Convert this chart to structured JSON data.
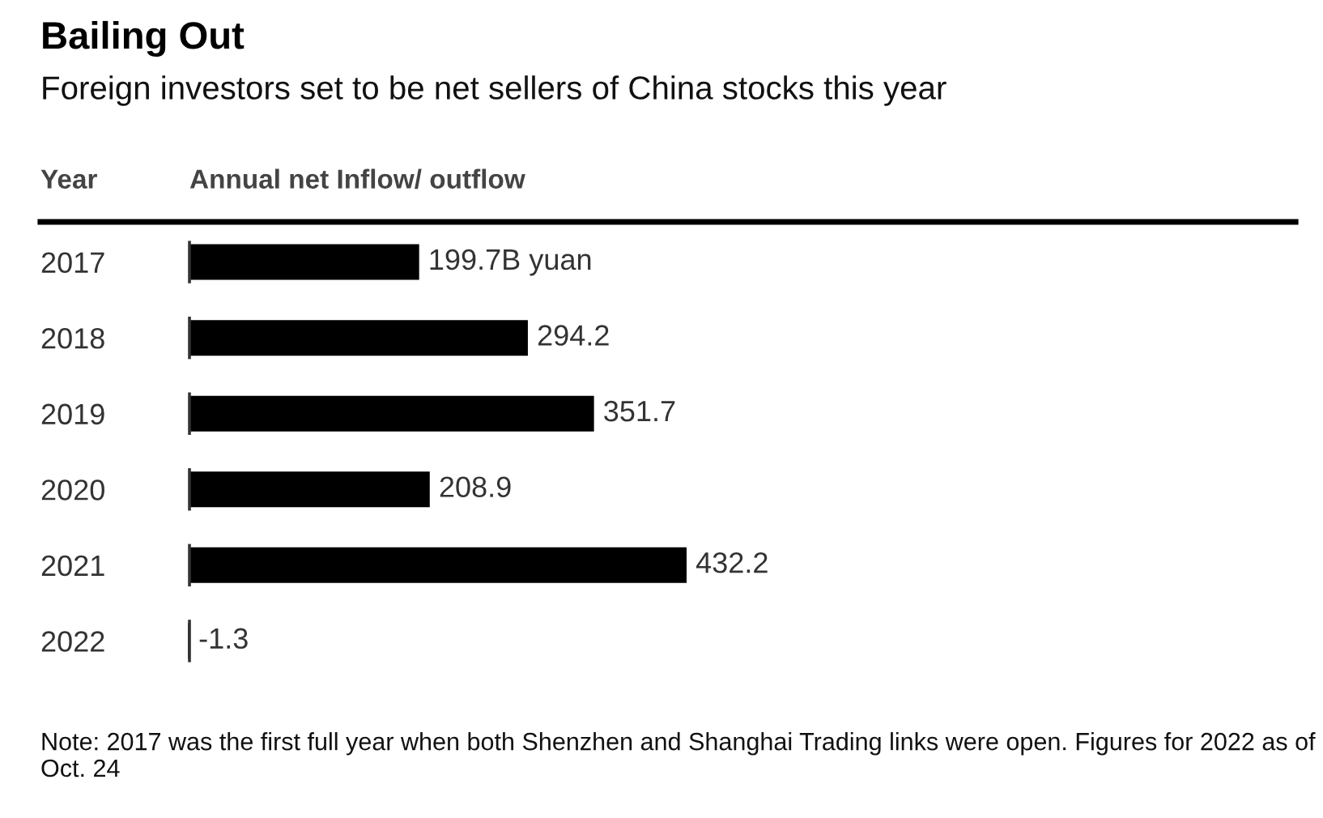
{
  "chart_data": {
    "type": "bar",
    "orientation": "horizontal",
    "title": "Bailing Out",
    "subtitle": "Foreign investors set to be net sellers of China stocks this year",
    "ylabel": "Year",
    "xlabel": "Annual net Inflow/ outflow",
    "categories": [
      "2017",
      "2018",
      "2019",
      "2020",
      "2021",
      "2022"
    ],
    "values": [
      199.7,
      294.2,
      351.7,
      208.9,
      432.2,
      -1.3
    ],
    "color": "#000000",
    "value_labels": [
      "199.7B yuan",
      "294.2",
      "351.7",
      "208.9",
      "432.2",
      "-1.3"
    ],
    "ref_lines": [
      {
        "axis": "x",
        "value": 0,
        "color": "#333333"
      }
    ],
    "tick_labels": "y",
    "annotations": [
      "Note: 2017 was the first full year when both Shenzhen and Shanghai Trading links were open. Figures for 2022 as of Oct. 24"
    ]
  }
}
